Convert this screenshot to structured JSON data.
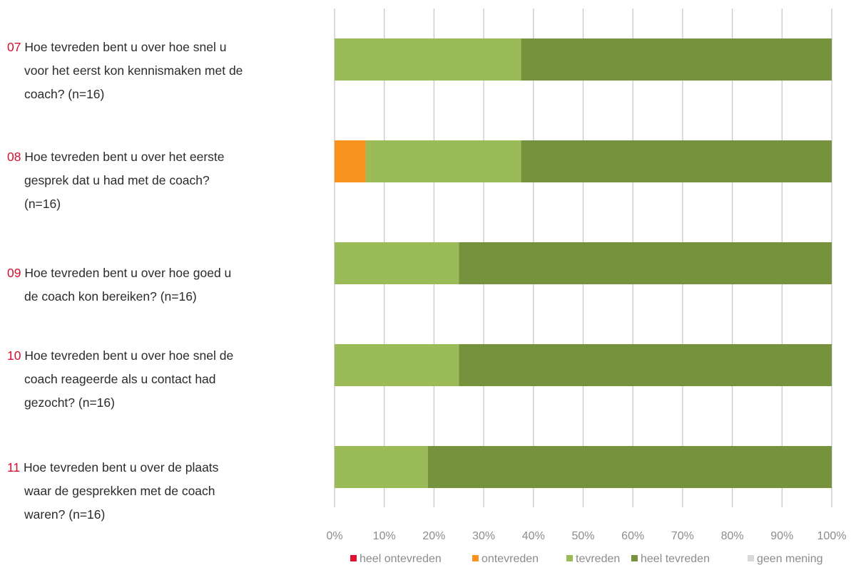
{
  "chart_data": {
    "type": "bar",
    "stacked": true,
    "orientation": "horizontal",
    "questions": [
      {
        "number": "07",
        "lines": [
          "Hoe tevreden bent u over hoe snel u",
          "voor het eerst kon kennismaken met de",
          "coach? (n=16)"
        ]
      },
      {
        "number": "08",
        "lines": [
          "Hoe tevreden bent u over het eerste",
          "gesprek dat u had met de coach?",
          "(n=16)"
        ]
      },
      {
        "number": "09",
        "lines": [
          "Hoe tevreden bent u over hoe goed u",
          "de coach kon bereiken? (n=16)"
        ]
      },
      {
        "number": "10",
        "lines": [
          "Hoe tevreden bent u over hoe snel de",
          "coach reageerde als u contact had",
          "gezocht? (n=16)"
        ]
      },
      {
        "number": "11",
        "lines": [
          "Hoe tevreden bent u over de plaats",
          "waar de gesprekken met de coach",
          "waren? (n=16)"
        ]
      }
    ],
    "series": [
      {
        "name": "heel ontevreden",
        "color": "#e0102f",
        "values": [
          0,
          0,
          0,
          0,
          0
        ]
      },
      {
        "name": "ontevreden",
        "color": "#f7931e",
        "values": [
          0,
          6.25,
          0,
          0,
          0
        ]
      },
      {
        "name": "tevreden",
        "color": "#9bbb59",
        "values": [
          37.5,
          31.25,
          25,
          25,
          18.75
        ]
      },
      {
        "name": "heel tevreden",
        "color": "#76923c",
        "values": [
          62.5,
          62.5,
          75,
          75,
          81.25
        ]
      },
      {
        "name": "geen mening",
        "color": "#d9d9d9",
        "values": [
          0,
          0,
          0,
          0,
          0
        ]
      }
    ],
    "xlim": [
      0,
      100
    ],
    "x_ticks": [
      "0%",
      "10%",
      "20%",
      "30%",
      "40%",
      "50%",
      "60%",
      "70%",
      "80%",
      "90%",
      "100%"
    ],
    "grid": true,
    "legend_position": "bottom"
  }
}
